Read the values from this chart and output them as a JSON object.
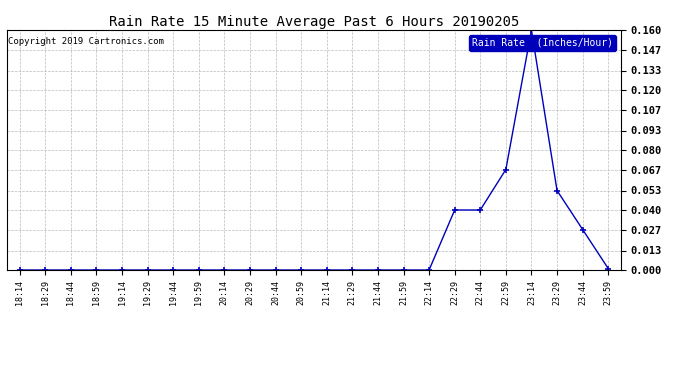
{
  "title": "Rain Rate 15 Minute Average Past 6 Hours 20190205",
  "copyright": "Copyright 2019 Cartronics.com",
  "legend_label": "Rain Rate  (Inches/Hour)",
  "x_labels": [
    "18:14",
    "18:29",
    "18:44",
    "18:59",
    "19:14",
    "19:29",
    "19:44",
    "19:59",
    "20:14",
    "20:29",
    "20:44",
    "20:59",
    "21:14",
    "21:29",
    "21:44",
    "21:59",
    "22:14",
    "22:29",
    "22:44",
    "22:59",
    "23:14",
    "23:29",
    "23:44",
    "23:59"
  ],
  "y_values": [
    0.0,
    0.0,
    0.0,
    0.0,
    0.0,
    0.0,
    0.0,
    0.0,
    0.0,
    0.0,
    0.0,
    0.0,
    0.0,
    0.0,
    0.0,
    0.0,
    0.0,
    0.04,
    0.04,
    0.067,
    0.16,
    0.053,
    0.027,
    0.001
  ],
  "line_color": "#0000bb",
  "marker": "+",
  "marker_size": 4,
  "marker_linewidth": 1.2,
  "line_width": 1.0,
  "ylim": [
    0.0,
    0.16
  ],
  "yticks": [
    0.0,
    0.013,
    0.027,
    0.04,
    0.053,
    0.067,
    0.08,
    0.093,
    0.107,
    0.12,
    0.133,
    0.147,
    0.16
  ],
  "background_color": "#ffffff",
  "plot_bg_color": "#ffffff",
  "grid_color": "#bbbbbb",
  "title_fontsize": 10,
  "copyright_fontsize": 6.5,
  "legend_fontsize": 7,
  "ytick_fontsize": 7.5,
  "xtick_fontsize": 6
}
